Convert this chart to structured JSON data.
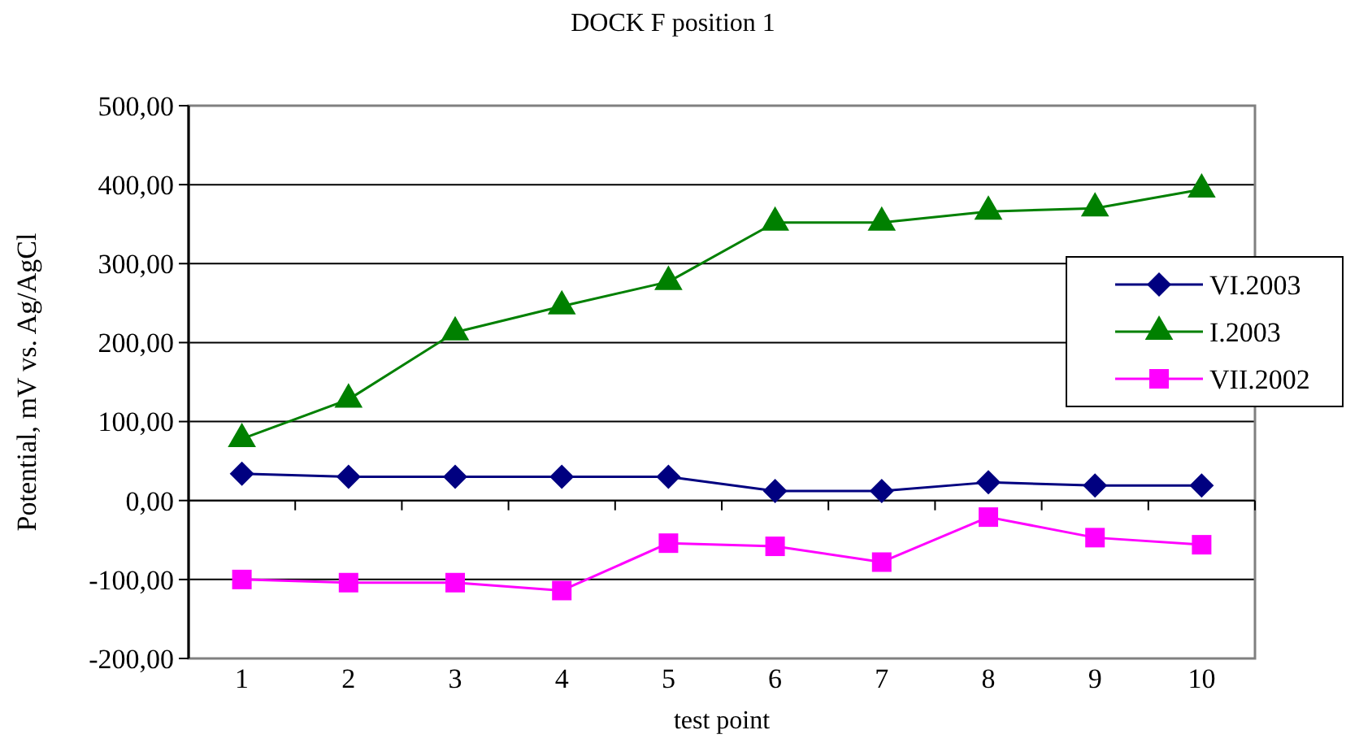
{
  "chart_data": {
    "type": "line",
    "title": "DOCK F position 1",
    "xlabel": "test point",
    "ylabel": "Potential, mV vs. Ag/AgCl",
    "categories": [
      "1",
      "2",
      "3",
      "4",
      "5",
      "6",
      "7",
      "8",
      "9",
      "10"
    ],
    "series": [
      {
        "name": "VI.2003",
        "color": "#000080",
        "marker": "diamond",
        "values": [
          34,
          30,
          30,
          30,
          30,
          12,
          12,
          23,
          19,
          19
        ]
      },
      {
        "name": "I.2003",
        "color": "#008000",
        "marker": "triangle",
        "values": [
          78,
          128,
          213,
          246,
          277,
          352,
          352,
          366,
          370,
          394
        ]
      },
      {
        "name": "VII.2002",
        "color": "#ff00ff",
        "marker": "square",
        "values": [
          -100,
          -104,
          -104,
          -114,
          -54,
          -58,
          -78,
          -21,
          -47,
          -56
        ]
      }
    ],
    "ylim": [
      -200,
      500
    ],
    "yticks": [
      {
        "value": -200,
        "label": "-200,00"
      },
      {
        "value": -100,
        "label": "-100,00"
      },
      {
        "value": 0,
        "label": "0,00"
      },
      {
        "value": 100,
        "label": "100,00"
      },
      {
        "value": 200,
        "label": "200,00"
      },
      {
        "value": 300,
        "label": "300,00"
      },
      {
        "value": 400,
        "label": "400,00"
      },
      {
        "value": 500,
        "label": "500,00"
      }
    ],
    "grid": "y",
    "legend": "right",
    "line_style": "solid"
  }
}
